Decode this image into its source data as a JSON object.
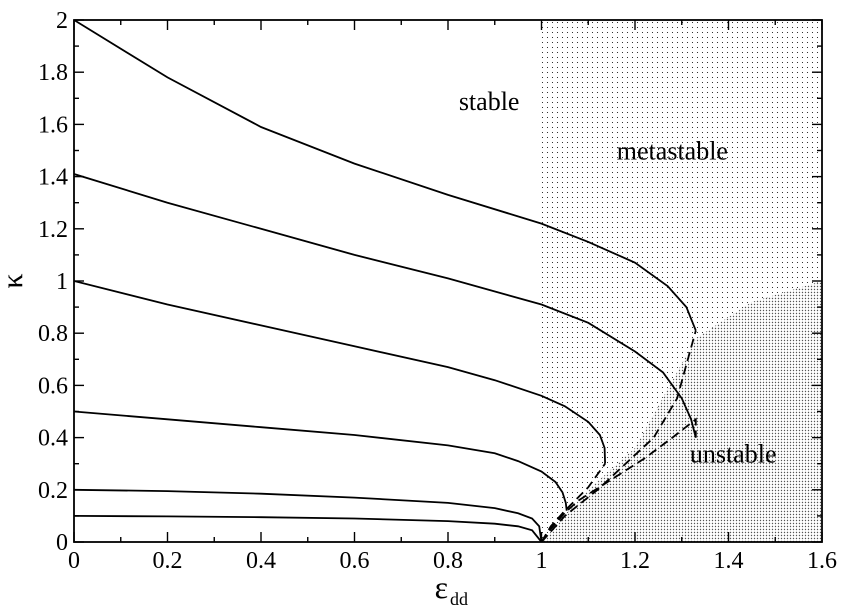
{
  "chart_data": {
    "type": "line",
    "title": "",
    "xlabel": "ε",
    "xlabel_sub": "dd",
    "ylabel": "κ",
    "xlim": [
      0,
      1.6
    ],
    "ylim": [
      0,
      2
    ],
    "x_ticks": [
      0,
      0.2,
      0.4,
      0.6,
      0.8,
      1,
      1.2,
      1.4,
      1.6
    ],
    "x_tick_labels": [
      "0",
      "0.2",
      "0.4",
      "0.6",
      "0.8",
      "1",
      "1.2",
      "1.4",
      "1.6"
    ],
    "y_ticks": [
      0,
      0.2,
      0.4,
      0.6,
      0.8,
      1,
      1.2,
      1.4,
      1.6,
      1.8,
      2
    ],
    "y_tick_labels": [
      "0",
      "0.2",
      "0.4",
      "0.6",
      "0.8",
      "1",
      "1.2",
      "1.4",
      "1.6",
      "1.8",
      "2"
    ],
    "grid": false,
    "regions": [
      {
        "label": "stable",
        "label_x": 1.38,
        "label_y": 1.69
      },
      {
        "label": "metastable",
        "label_x": 1.28,
        "label_y": 1.5
      },
      {
        "label": "unstable",
        "label_x": 1.41,
        "label_y": 0.34
      }
    ],
    "series": [
      {
        "style": "solid",
        "points": [
          [
            0,
            0.1
          ],
          [
            0.2,
            0.098
          ],
          [
            0.4,
            0.095
          ],
          [
            0.6,
            0.09
          ],
          [
            0.8,
            0.08
          ],
          [
            0.9,
            0.07
          ],
          [
            0.95,
            0.06
          ],
          [
            0.98,
            0.045
          ],
          [
            1.0,
            0.0
          ]
        ]
      },
      {
        "style": "solid",
        "points": [
          [
            0,
            0.2
          ],
          [
            0.2,
            0.195
          ],
          [
            0.4,
            0.185
          ],
          [
            0.6,
            0.17
          ],
          [
            0.8,
            0.15
          ],
          [
            0.9,
            0.13
          ],
          [
            0.95,
            0.11
          ],
          [
            0.98,
            0.09
          ],
          [
            0.995,
            0.06
          ],
          [
            1.0,
            0.0
          ]
        ]
      },
      {
        "style": "solid",
        "points": [
          [
            0,
            0.5
          ],
          [
            0.2,
            0.47
          ],
          [
            0.4,
            0.44
          ],
          [
            0.6,
            0.41
          ],
          [
            0.8,
            0.37
          ],
          [
            0.9,
            0.34
          ],
          [
            0.95,
            0.31
          ],
          [
            1.0,
            0.27
          ],
          [
            1.03,
            0.23
          ],
          [
            1.045,
            0.19
          ],
          [
            1.052,
            0.15
          ],
          [
            1.054,
            0.12
          ]
        ]
      },
      {
        "style": "solid",
        "points": [
          [
            0,
            1.0
          ],
          [
            0.2,
            0.91
          ],
          [
            0.4,
            0.83
          ],
          [
            0.6,
            0.75
          ],
          [
            0.8,
            0.67
          ],
          [
            0.9,
            0.62
          ],
          [
            1.0,
            0.56
          ],
          [
            1.05,
            0.52
          ],
          [
            1.1,
            0.46
          ],
          [
            1.125,
            0.41
          ],
          [
            1.135,
            0.36
          ],
          [
            1.136,
            0.3
          ]
        ]
      },
      {
        "style": "solid",
        "points": [
          [
            0,
            1.41
          ],
          [
            0.2,
            1.3
          ],
          [
            0.4,
            1.2
          ],
          [
            0.6,
            1.1
          ],
          [
            0.8,
            1.01
          ],
          [
            1.0,
            0.91
          ],
          [
            1.1,
            0.84
          ],
          [
            1.2,
            0.73
          ],
          [
            1.26,
            0.65
          ],
          [
            1.3,
            0.55
          ],
          [
            1.32,
            0.47
          ],
          [
            1.33,
            0.4
          ]
        ]
      },
      {
        "style": "solid",
        "points": [
          [
            0,
            2.0
          ],
          [
            0.2,
            1.78
          ],
          [
            0.4,
            1.59
          ],
          [
            0.6,
            1.45
          ],
          [
            0.8,
            1.33
          ],
          [
            1.0,
            1.22
          ],
          [
            1.1,
            1.15
          ],
          [
            1.2,
            1.07
          ],
          [
            1.27,
            0.98
          ],
          [
            1.31,
            0.9
          ],
          [
            1.33,
            0.81
          ]
        ]
      },
      {
        "style": "dashed",
        "points": [
          [
            1.0,
            0.0
          ],
          [
            1.01,
            0.03
          ],
          [
            1.025,
            0.06
          ],
          [
            1.054,
            0.12
          ]
        ]
      },
      {
        "style": "dashed",
        "points": [
          [
            1.0,
            0.0
          ],
          [
            1.02,
            0.06
          ],
          [
            1.05,
            0.12
          ],
          [
            1.1,
            0.21
          ],
          [
            1.136,
            0.3
          ]
        ]
      },
      {
        "style": "dashed",
        "points": [
          [
            1.0,
            0.0
          ],
          [
            1.03,
            0.08
          ],
          [
            1.08,
            0.16
          ],
          [
            1.15,
            0.24
          ],
          [
            1.22,
            0.32
          ],
          [
            1.28,
            0.4
          ],
          [
            1.33,
            0.47
          ],
          [
            1.33,
            0.4
          ]
        ]
      },
      {
        "style": "dashed",
        "points": [
          [
            1.0,
            0.0
          ],
          [
            1.05,
            0.1
          ],
          [
            1.12,
            0.2
          ],
          [
            1.18,
            0.3
          ],
          [
            1.24,
            0.4
          ],
          [
            1.29,
            0.55
          ],
          [
            1.31,
            0.68
          ],
          [
            1.33,
            0.81
          ]
        ]
      }
    ]
  }
}
